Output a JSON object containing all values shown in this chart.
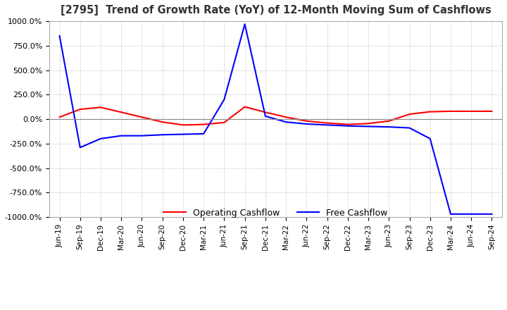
{
  "title": "[2795]  Trend of Growth Rate (YoY) of 12-Month Moving Sum of Cashflows",
  "ylim": [
    -1000,
    1000
  ],
  "yticks": [
    1000.0,
    750.0,
    500.0,
    250.0,
    0.0,
    -250.0,
    -500.0,
    -750.0,
    -1000.0
  ],
  "ytick_labels": [
    "1000.0%",
    "750.0%",
    "500.0%",
    "250.0%",
    "0.0%",
    "-250.0%",
    "-500.0%",
    "-750.0%",
    "-1000.0%"
  ],
  "x_labels": [
    "Jun-19",
    "Sep-19",
    "Dec-19",
    "Mar-20",
    "Jun-20",
    "Sep-20",
    "Dec-20",
    "Mar-21",
    "Jun-21",
    "Sep-21",
    "Dec-21",
    "Mar-22",
    "Jun-22",
    "Sep-22",
    "Dec-22",
    "Mar-23",
    "Jun-23",
    "Sep-23",
    "Dec-23",
    "Mar-24",
    "Jun-24",
    "Sep-24"
  ],
  "operating_cashflow": [
    20,
    100,
    120,
    70,
    20,
    -30,
    -60,
    -55,
    -35,
    125,
    70,
    20,
    -20,
    -40,
    -55,
    -45,
    -20,
    50,
    75,
    80,
    80,
    80
  ],
  "free_cashflow": [
    850,
    -290,
    -200,
    -170,
    -170,
    -160,
    -155,
    -150,
    200,
    970,
    30,
    -30,
    -50,
    -60,
    -70,
    -75,
    -80,
    -90,
    -200,
    -970,
    -970,
    -970
  ],
  "operating_color": "#ff0000",
  "free_color": "#0000ff",
  "background_color": "#ffffff",
  "grid_color": "#b0b0b0",
  "title_color": "#333333",
  "legend_labels": [
    "Operating Cashflow",
    "Free Cashflow"
  ]
}
